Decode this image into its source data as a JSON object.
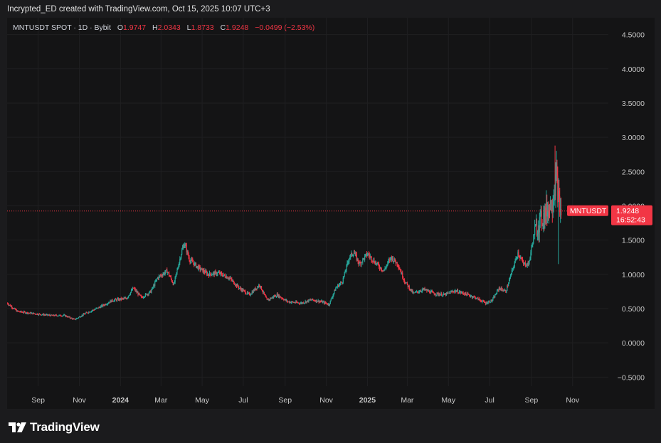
{
  "caption": "Incrypted_ED created with TradingView.com, Oct 15, 2025 10:07 UTC+3",
  "legend": {
    "symbol": "MNTUSDT SPOT · 1D · Bybit",
    "o_label": "O",
    "o_value": "1.9747",
    "h_label": "H",
    "h_value": "2.0343",
    "l_label": "L",
    "l_value": "1.8733",
    "c_label": "C",
    "c_value": "1.9248",
    "change": "−0.0499 (−2.53%)"
  },
  "price_tag": {
    "symbol": "MNTUSDT",
    "price": "1.9248",
    "countdown": "16:52:43"
  },
  "footer": {
    "brand": "TradingView"
  },
  "colors": {
    "up": "#26a69a",
    "down": "#f23645",
    "background": "#141415",
    "grid": "#1f1f21"
  },
  "chart_data": {
    "type": "candlestick",
    "title": "MNTUSDT SPOT · 1D · Bybit",
    "y_ticks": [
      "4.5000",
      "4.0000",
      "3.5000",
      "3.0000",
      "2.5000",
      "2.0000",
      "1.5000",
      "1.0000",
      "0.5000",
      "0.0000",
      "−0.5000"
    ],
    "ylim": [
      -0.59,
      4.6
    ],
    "x_ticks": [
      {
        "label": "Sep",
        "date": "2023-09-01",
        "bold": false
      },
      {
        "label": "Nov",
        "date": "2023-11-01",
        "bold": false
      },
      {
        "label": "2024",
        "date": "2024-01-01",
        "bold": true
      },
      {
        "label": "Mar",
        "date": "2024-03-01",
        "bold": false
      },
      {
        "label": "May",
        "date": "2024-05-01",
        "bold": false
      },
      {
        "label": "Jul",
        "date": "2024-07-01",
        "bold": false
      },
      {
        "label": "Sep",
        "date": "2024-09-01",
        "bold": false
      },
      {
        "label": "Nov",
        "date": "2024-11-01",
        "bold": false
      },
      {
        "label": "2025",
        "date": "2025-01-01",
        "bold": true
      },
      {
        "label": "Mar",
        "date": "2025-03-01",
        "bold": false
      },
      {
        "label": "May",
        "date": "2025-05-01",
        "bold": false
      },
      {
        "label": "Jul",
        "date": "2025-07-01",
        "bold": false
      },
      {
        "label": "Sep",
        "date": "2025-09-01",
        "bold": false
      },
      {
        "label": "Nov",
        "date": "2025-11-01",
        "bold": false
      }
    ],
    "xlim": [
      "2023-07-17",
      "2025-12-24"
    ],
    "last_price": 1.9248,
    "price_path": [
      [
        "2023-07-17",
        0.58
      ],
      [
        "2023-08-01",
        0.46
      ],
      [
        "2023-08-15",
        0.44
      ],
      [
        "2023-09-01",
        0.42
      ],
      [
        "2023-09-20",
        0.4
      ],
      [
        "2023-10-10",
        0.4
      ],
      [
        "2023-10-25",
        0.34
      ],
      [
        "2023-11-10",
        0.43
      ],
      [
        "2023-12-01",
        0.52
      ],
      [
        "2023-12-20",
        0.62
      ],
      [
        "2024-01-10",
        0.65
      ],
      [
        "2024-01-20",
        0.8
      ],
      [
        "2024-02-01",
        0.66
      ],
      [
        "2024-02-15",
        0.75
      ],
      [
        "2024-02-25",
        0.95
      ],
      [
        "2024-03-10",
        1.05
      ],
      [
        "2024-03-20",
        0.85
      ],
      [
        "2024-04-01",
        1.35
      ],
      [
        "2024-04-05",
        1.45
      ],
      [
        "2024-04-12",
        1.22
      ],
      [
        "2024-04-25",
        1.1
      ],
      [
        "2024-05-10",
        1.0
      ],
      [
        "2024-05-25",
        1.02
      ],
      [
        "2024-06-10",
        0.95
      ],
      [
        "2024-06-25",
        0.8
      ],
      [
        "2024-07-10",
        0.7
      ],
      [
        "2024-07-25",
        0.85
      ],
      [
        "2024-08-05",
        0.62
      ],
      [
        "2024-08-20",
        0.7
      ],
      [
        "2024-09-05",
        0.6
      ],
      [
        "2024-09-25",
        0.58
      ],
      [
        "2024-10-10",
        0.63
      ],
      [
        "2024-10-25",
        0.6
      ],
      [
        "2024-11-05",
        0.56
      ],
      [
        "2024-11-15",
        0.8
      ],
      [
        "2024-11-25",
        0.9
      ],
      [
        "2024-12-05",
        1.25
      ],
      [
        "2024-12-12",
        1.32
      ],
      [
        "2024-12-20",
        1.15
      ],
      [
        "2025-01-01",
        1.3
      ],
      [
        "2025-01-10",
        1.2
      ],
      [
        "2025-01-25",
        1.05
      ],
      [
        "2025-02-05",
        1.25
      ],
      [
        "2025-02-15",
        1.15
      ],
      [
        "2025-02-25",
        0.9
      ],
      [
        "2025-03-10",
        0.72
      ],
      [
        "2025-03-25",
        0.78
      ],
      [
        "2025-04-10",
        0.72
      ],
      [
        "2025-04-25",
        0.7
      ],
      [
        "2025-05-10",
        0.76
      ],
      [
        "2025-05-25",
        0.72
      ],
      [
        "2025-06-10",
        0.66
      ],
      [
        "2025-06-25",
        0.58
      ],
      [
        "2025-07-05",
        0.62
      ],
      [
        "2025-07-15",
        0.8
      ],
      [
        "2025-07-25",
        0.75
      ],
      [
        "2025-08-05",
        1.1
      ],
      [
        "2025-08-12",
        1.32
      ],
      [
        "2025-08-20",
        1.15
      ],
      [
        "2025-08-28",
        1.15
      ],
      [
        "2025-09-05",
        1.6
      ],
      [
        "2025-09-15",
        1.8
      ],
      [
        "2025-09-25",
        1.95
      ],
      [
        "2025-10-03",
        2.1
      ],
      [
        "2025-10-08",
        2.45
      ],
      [
        "2025-10-11",
        2.1
      ],
      [
        "2025-10-14",
        1.92
      ],
      [
        "2025-10-15",
        1.92
      ]
    ]
  }
}
